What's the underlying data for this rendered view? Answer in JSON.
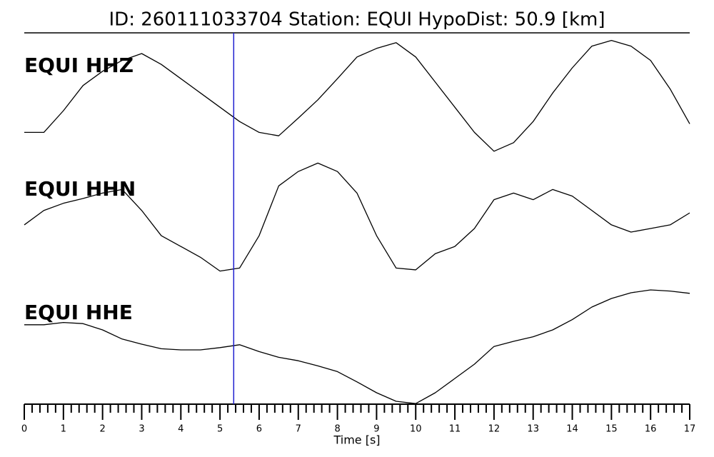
{
  "chart_data": {
    "type": "line",
    "title": "ID: 260111033704   Station: EQUI   HypoDist:    50.9 [km]",
    "xlabel": "Time [s]",
    "x": [
      0,
      0.5,
      1,
      1.5,
      2,
      2.5,
      3,
      3.5,
      4,
      4.5,
      5,
      5.5,
      6,
      6.5,
      7,
      7.5,
      8,
      8.5,
      9,
      9.5,
      10,
      10.5,
      11,
      11.5,
      12,
      12.5,
      13,
      13.5,
      14,
      14.5,
      15,
      15.5,
      16,
      16.5,
      17
    ],
    "xlim": [
      0,
      17
    ],
    "xticks": [
      0,
      1,
      2,
      3,
      4,
      5,
      6,
      7,
      8,
      9,
      10,
      11,
      12,
      13,
      14,
      15,
      16,
      17
    ],
    "minor_ticks_per_unit": 5,
    "pick_time": 5.35,
    "pick_color": "#1f1fd0",
    "label_color": "#4c9a00",
    "series": [
      {
        "name": "EQUI HHZ",
        "color": "#000000",
        "values": [
          -0.63,
          -0.63,
          -0.25,
          0.19,
          0.44,
          0.63,
          0.75,
          0.56,
          0.31,
          0.06,
          -0.19,
          -0.44,
          -0.63,
          -0.69,
          -0.38,
          -0.06,
          0.31,
          0.69,
          0.84,
          0.94,
          0.69,
          0.25,
          -0.19,
          -0.63,
          -0.96,
          -0.81,
          -0.44,
          0.06,
          0.5,
          0.88,
          0.98,
          0.88,
          0.63,
          0.13,
          -0.48
        ]
      },
      {
        "name": "EQUI HHN",
        "color": "#000000",
        "values": [
          -0.13,
          0.11,
          0.23,
          0.31,
          0.4,
          0.46,
          0.11,
          -0.31,
          -0.49,
          -0.67,
          -0.9,
          -0.85,
          -0.31,
          0.52,
          0.76,
          0.9,
          0.76,
          0.4,
          -0.31,
          -0.85,
          -0.88,
          -0.61,
          -0.49,
          -0.19,
          0.29,
          0.4,
          0.29,
          0.46,
          0.35,
          0.11,
          -0.13,
          -0.25,
          -0.19,
          -0.13,
          0.07
        ]
      },
      {
        "name": "EQUI HHE",
        "color": "#000000",
        "values": [
          0.39,
          0.39,
          0.43,
          0.41,
          0.3,
          0.14,
          0.05,
          -0.03,
          -0.05,
          -0.05,
          -0.01,
          0.04,
          -0.08,
          -0.18,
          -0.24,
          -0.33,
          -0.43,
          -0.61,
          -0.8,
          -0.95,
          -0.99,
          -0.8,
          -0.55,
          -0.3,
          0.01,
          0.1,
          0.18,
          0.3,
          0.48,
          0.7,
          0.85,
          0.95,
          1.0,
          0.98,
          0.94
        ]
      }
    ]
  }
}
